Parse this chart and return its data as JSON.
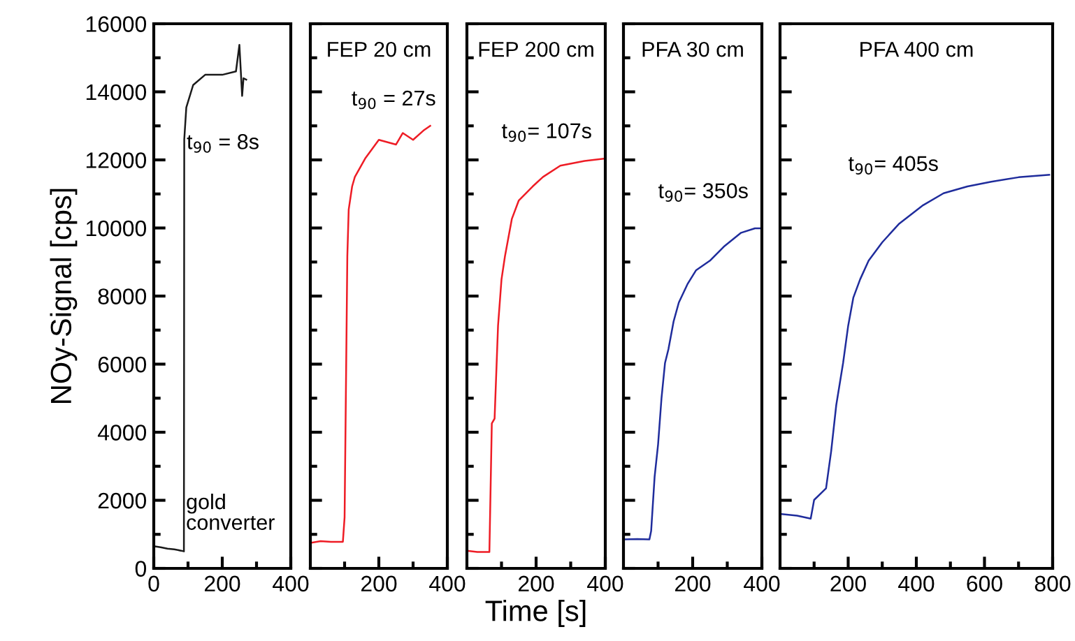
{
  "chart_data": [
    {
      "type": "line",
      "ylabel": "NOy-Signal [cps]",
      "xlim": [
        0,
        400
      ],
      "xticks": [
        0,
        200,
        400
      ],
      "ylim": [
        0,
        16000
      ],
      "yticks": [
        0,
        2000,
        4000,
        6000,
        8000,
        10000,
        12000,
        14000,
        16000
      ],
      "grid": false,
      "series": [
        {
          "color": "#1a1a1a",
          "x": [
            0,
            20,
            40,
            60,
            80,
            88,
            89,
            95,
            115,
            150,
            200,
            240,
            250,
            258,
            262,
            270
          ],
          "values": [
            650,
            620,
            580,
            560,
            520,
            500,
            12600,
            13540,
            14200,
            14500,
            14500,
            14600,
            15380,
            13880,
            14400,
            14360
          ]
        }
      ],
      "annotations": [
        "t$_{90}$ = 8s",
        "gold\nconverter"
      ]
    },
    {
      "type": "line",
      "title": "FEP 20 cm",
      "xlim": [
        0,
        400
      ],
      "xticks": [
        200,
        400
      ],
      "ylim": [
        0,
        16000
      ],
      "yticks": [
        0,
        2000,
        4000,
        6000,
        8000,
        10000,
        12000,
        14000,
        16000
      ],
      "tick_labels": "x",
      "grid": false,
      "series": [
        {
          "color": "#ee1c25",
          "x": [
            0,
            30,
            60,
            95,
            100,
            108,
            112,
            122,
            130,
            160,
            200,
            250,
            270,
            300,
            330,
            350
          ],
          "values": [
            750,
            800,
            780,
            780,
            1500,
            9170,
            10540,
            11220,
            11500,
            12040,
            12590,
            12450,
            12790,
            12590,
            12860,
            13000
          ]
        }
      ],
      "annotations": [
        "t$_{90}$ = 27s"
      ]
    },
    {
      "type": "line",
      "title": "FEP 200 cm",
      "xlabel": "Time [s]",
      "xlim": [
        0,
        400
      ],
      "xticks": [
        200,
        400
      ],
      "ylim": [
        0,
        16000
      ],
      "yticks": [
        0,
        2000,
        4000,
        6000,
        8000,
        10000,
        12000,
        14000,
        16000
      ],
      "tick_labels": "x",
      "grid": false,
      "series": [
        {
          "color": "#ee1c25",
          "x": [
            0,
            30,
            65,
            72,
            80,
            90,
            100,
            110,
            130,
            150,
            190,
            220,
            270,
            340,
            400
          ],
          "values": [
            520,
            480,
            480,
            4260,
            4400,
            7130,
            8490,
            9170,
            10270,
            10810,
            11220,
            11500,
            11830,
            11970,
            12040
          ]
        }
      ],
      "annotations": [
        "t$_{90}$= 107s"
      ]
    },
    {
      "type": "line",
      "title": "PFA 30 cm",
      "xlim": [
        0,
        400
      ],
      "xticks": [
        200,
        400
      ],
      "ylim": [
        0,
        16000
      ],
      "yticks": [
        0,
        2000,
        4000,
        6000,
        8000,
        10000,
        12000,
        14000,
        16000
      ],
      "tick_labels": "x",
      "grid": false,
      "series": [
        {
          "color": "#1f2c9c",
          "x": [
            0,
            40,
            75,
            80,
            90,
            100,
            110,
            120,
            130,
            145,
            160,
            185,
            210,
            250,
            290,
            340,
            380,
            400
          ],
          "values": [
            850,
            860,
            850,
            1100,
            2690,
            3640,
            5010,
            6030,
            6440,
            7260,
            7810,
            8350,
            8760,
            9040,
            9450,
            9860,
            9990,
            9990
          ]
        }
      ],
      "annotations": [
        "t$_{90}$= 350s"
      ]
    },
    {
      "type": "line",
      "title": "PFA 400 cm",
      "xlim": [
        0,
        800
      ],
      "xticks": [
        200,
        400,
        600,
        800
      ],
      "ylim": [
        0,
        16000
      ],
      "yticks": [
        0,
        2000,
        4000,
        6000,
        8000,
        10000,
        12000,
        14000,
        16000
      ],
      "tick_labels": "x",
      "grid": false,
      "series": [
        {
          "color": "#1f2c9c",
          "x": [
            0,
            50,
            90,
            100,
            135,
            150,
            165,
            185,
            200,
            215,
            235,
            260,
            300,
            350,
            420,
            480,
            550,
            620,
            700,
            790
          ],
          "values": [
            1600,
            1550,
            1460,
            2010,
            2350,
            3440,
            4800,
            6030,
            7130,
            7950,
            8490,
            9040,
            9580,
            10130,
            10670,
            11020,
            11220,
            11360,
            11490,
            11560
          ]
        }
      ],
      "annotations": [
        "t$_{90}$= 405s"
      ]
    }
  ]
}
